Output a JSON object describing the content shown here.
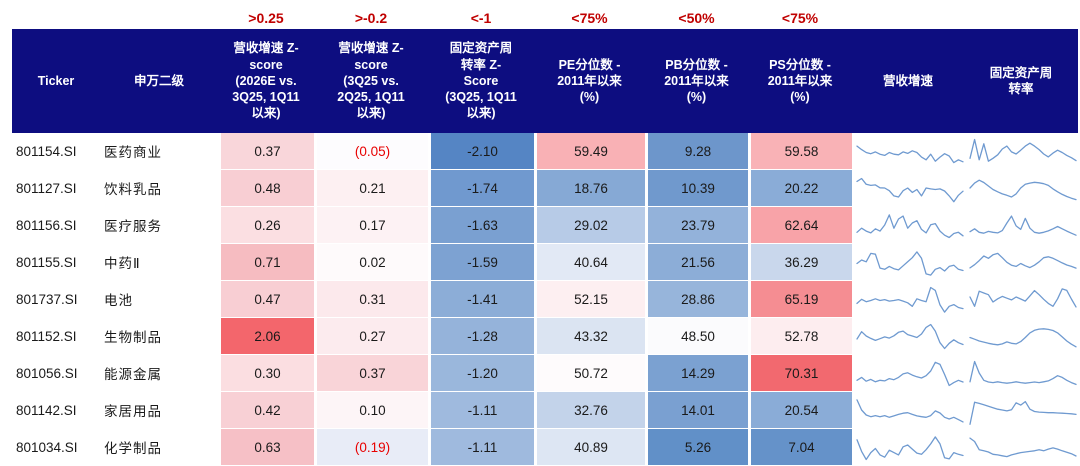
{
  "palette": {
    "header_bg": "#0d0d80",
    "header_text": "#ffffff",
    "annotation_red": "#c00000",
    "negative_red": "#e80000",
    "spark_line": "#6f9ad0",
    "cell_text": "#1a1a1a"
  },
  "annotations": {
    "z1": ">0.25",
    "z2": ">-0.2",
    "z3": "<-1",
    "pe": "<75%",
    "pb": "<50%",
    "ps": "<75%"
  },
  "header": {
    "ticker": "Ticker",
    "name": "申万二级",
    "z1": "营收增速 Z-\nscore\n(2026E vs.\n3Q25, 1Q11\n以来)",
    "z2": "营收增速 Z-\nscore\n(3Q25 vs.\n2Q25, 1Q11\n以来)",
    "z3": "固定资产周\n转率 Z-\nScore\n(3Q25, 1Q11\n以来)",
    "pe": "PE分位数 -\n2011年以来\n(%)",
    "pb": "PB分位数 -\n2011年以来\n(%)",
    "ps": "PS分位数 -\n2011年以来\n(%)",
    "spark_revenue": "营收增速",
    "spark_turnover": "固定资产周\n转率"
  },
  "chart_data": {
    "type": "table",
    "columns": [
      "Ticker",
      "申万二级",
      "营收增速 Z-score (2026E vs. 3Q25, 1Q11 以来)",
      "营收增速 Z-score (3Q25 vs. 2Q25, 1Q11 以来)",
      "固定资产周转率 Z-Score (3Q25, 1Q11 以来)",
      "PE分位数 - 2011年以来 (%)",
      "PB分位数 - 2011年以来 (%)",
      "PS分位数 - 2011年以来 (%)",
      "营收增速",
      "固定资产周转率"
    ],
    "threshold_annotations": [
      ">0.25",
      ">-0.2",
      "<-1",
      "<75%",
      "<50%",
      "<75%"
    ],
    "rows": [
      {
        "ticker": "801154.SI",
        "name": "医药商业",
        "cells": [
          {
            "v": "0.37",
            "bg": "#f9d6da"
          },
          {
            "v": "(0.05)",
            "bg": "#fdfcfe",
            "neg": true
          },
          {
            "v": "-2.10",
            "bg": "#5585c4"
          },
          {
            "v": "59.49",
            "bg": "#f9b1b5"
          },
          {
            "v": "9.28",
            "bg": "#6d96cb"
          },
          {
            "v": "59.58",
            "bg": "#f9b2b6"
          }
        ],
        "spark_revenue": [
          0.72,
          0.6,
          0.5,
          0.46,
          0.52,
          0.44,
          0.4,
          0.5,
          0.44,
          0.42,
          0.52,
          0.47,
          0.56,
          0.5,
          0.34,
          0.25,
          0.44,
          0.2,
          0.34,
          0.46,
          0.38,
          0.15,
          0.25,
          0.18
        ],
        "spark_turnover": [
          0.3,
          0.95,
          0.25,
          0.8,
          0.2,
          0.3,
          0.42,
          0.62,
          0.72,
          0.52,
          0.45,
          0.58,
          0.72,
          0.82,
          0.72,
          0.6,
          0.45,
          0.35,
          0.48,
          0.58,
          0.5,
          0.4,
          0.32,
          0.22
        ]
      },
      {
        "ticker": "801127.SI",
        "name": "饮料乳品",
        "cells": [
          {
            "v": "0.48",
            "bg": "#f8ced3"
          },
          {
            "v": "0.21",
            "bg": "#fdf0f2"
          },
          {
            "v": "-1.74",
            "bg": "#7099cf"
          },
          {
            "v": "18.76",
            "bg": "#86a9d5"
          },
          {
            "v": "10.39",
            "bg": "#7099cd"
          },
          {
            "v": "20.22",
            "bg": "#8aacd7"
          }
        ],
        "spark_revenue": [
          0.78,
          0.88,
          0.68,
          0.64,
          0.66,
          0.56,
          0.55,
          0.46,
          0.28,
          0.24,
          0.46,
          0.55,
          0.4,
          0.5,
          0.28,
          0.55,
          0.52,
          0.5,
          0.52,
          0.45,
          0.28,
          0.08,
          0.3,
          0.44
        ],
        "spark_turnover": [
          0.55,
          0.72,
          0.82,
          0.74,
          0.62,
          0.5,
          0.42,
          0.35,
          0.3,
          0.24,
          0.35,
          0.55,
          0.68,
          0.72,
          0.75,
          0.73,
          0.7,
          0.64,
          0.52,
          0.42,
          0.33,
          0.26,
          0.2,
          0.15
        ]
      },
      {
        "ticker": "801156.SI",
        "name": "医疗服务",
        "cells": [
          {
            "v": "0.26",
            "bg": "#fbdfe2"
          },
          {
            "v": "0.17",
            "bg": "#fdf2f4"
          },
          {
            "v": "-1.63",
            "bg": "#7aa0d1"
          },
          {
            "v": "29.02",
            "bg": "#b7cbe7"
          },
          {
            "v": "23.79",
            "bg": "#93b2da"
          },
          {
            "v": "62.64",
            "bg": "#f8a3a8"
          }
        ],
        "spark_revenue": [
          0.3,
          0.44,
          0.34,
          0.28,
          0.42,
          0.34,
          0.55,
          0.9,
          0.44,
          0.76,
          0.86,
          0.44,
          0.62,
          0.7,
          0.4,
          0.28,
          0.56,
          0.6,
          0.34,
          0.2,
          0.12,
          0.26,
          0.3,
          0.18
        ],
        "spark_turnover": [
          0.32,
          0.42,
          0.3,
          0.27,
          0.33,
          0.3,
          0.28,
          0.36,
          0.62,
          0.86,
          0.52,
          0.4,
          0.78,
          0.44,
          0.3,
          0.27,
          0.3,
          0.35,
          0.42,
          0.5,
          0.42,
          0.34,
          0.27,
          0.2
        ]
      },
      {
        "ticker": "801155.SI",
        "name": "中药Ⅱ",
        "cells": [
          {
            "v": "0.71",
            "bg": "#f6bcc1"
          },
          {
            "v": "0.02",
            "bg": "#fefafb"
          },
          {
            "v": "-1.59",
            "bg": "#7da2d2"
          },
          {
            "v": "40.64",
            "bg": "#e2e9f5"
          },
          {
            "v": "21.56",
            "bg": "#8cadd7"
          },
          {
            "v": "36.29",
            "bg": "#c9d7ec"
          }
        ],
        "spark_revenue": [
          0.5,
          0.62,
          0.56,
          0.85,
          0.82,
          0.34,
          0.3,
          0.4,
          0.32,
          0.28,
          0.42,
          0.56,
          0.7,
          0.9,
          0.68,
          0.14,
          0.1,
          0.3,
          0.36,
          0.24,
          0.4,
          0.44,
          0.3,
          0.26
        ],
        "spark_turnover": [
          0.35,
          0.46,
          0.6,
          0.76,
          0.68,
          0.8,
          0.85,
          0.7,
          0.54,
          0.44,
          0.4,
          0.5,
          0.42,
          0.36,
          0.44,
          0.56,
          0.7,
          0.73,
          0.68,
          0.6,
          0.52,
          0.45,
          0.4,
          0.34
        ]
      },
      {
        "ticker": "801737.SI",
        "name": "电池",
        "cells": [
          {
            "v": "0.47",
            "bg": "#f8ced3"
          },
          {
            "v": "0.31",
            "bg": "#fce9ec"
          },
          {
            "v": "-1.41",
            "bg": "#8cadd7"
          },
          {
            "v": "52.15",
            "bg": "#fdeff1"
          },
          {
            "v": "28.86",
            "bg": "#97b5db"
          },
          {
            "v": "65.19",
            "bg": "#f58d92"
          }
        ],
        "spark_revenue": [
          0.4,
          0.54,
          0.46,
          0.5,
          0.56,
          0.5,
          0.53,
          0.48,
          0.5,
          0.53,
          0.48,
          0.42,
          0.3,
          0.56,
          0.5,
          0.46,
          0.95,
          0.85,
          0.35,
          0.1,
          0.3,
          0.36,
          0.26,
          0.22
        ],
        "spark_turnover": [
          0.62,
          0.3,
          0.82,
          0.76,
          0.7,
          0.45,
          0.56,
          0.64,
          0.58,
          0.52,
          0.62,
          0.55,
          0.48,
          0.66,
          0.84,
          0.7,
          0.54,
          0.4,
          0.3,
          0.56,
          0.9,
          0.85,
          0.55,
          0.28
        ]
      },
      {
        "ticker": "801152.SI",
        "name": "生物制品",
        "cells": [
          {
            "v": "2.06",
            "bg": "#f3666c"
          },
          {
            "v": "0.27",
            "bg": "#fcebee"
          },
          {
            "v": "-1.28",
            "bg": "#95b3da"
          },
          {
            "v": "43.32",
            "bg": "#dbe4f2"
          },
          {
            "v": "48.50",
            "bg": "#fbfbfd"
          },
          {
            "v": "52.78",
            "bg": "#fdedef"
          }
        ],
        "spark_revenue": [
          0.45,
          0.7,
          0.55,
          0.47,
          0.4,
          0.46,
          0.52,
          0.48,
          0.56,
          0.68,
          0.72,
          0.6,
          0.55,
          0.5,
          0.62,
          0.85,
          0.95,
          0.72,
          0.32,
          0.12,
          0.3,
          0.42,
          0.32,
          0.26
        ],
        "spark_turnover": [
          0.5,
          0.44,
          0.38,
          0.34,
          0.3,
          0.27,
          0.25,
          0.28,
          0.35,
          0.3,
          0.28,
          0.36,
          0.5,
          0.66,
          0.75,
          0.79,
          0.8,
          0.78,
          0.74,
          0.66,
          0.52,
          0.38,
          0.27,
          0.18
        ]
      },
      {
        "ticker": "801056.SI",
        "name": "能源金属",
        "cells": [
          {
            "v": "0.30",
            "bg": "#fbdee1"
          },
          {
            "v": "0.37",
            "bg": "#f9d4d8"
          },
          {
            "v": "-1.20",
            "bg": "#9ab7dc"
          },
          {
            "v": "50.72",
            "bg": "#fefbfc"
          },
          {
            "v": "14.29",
            "bg": "#7ba1d1"
          },
          {
            "v": "70.31",
            "bg": "#f2696f"
          }
        ],
        "spark_revenue": [
          0.3,
          0.4,
          0.27,
          0.33,
          0.25,
          0.3,
          0.28,
          0.36,
          0.32,
          0.4,
          0.52,
          0.56,
          0.48,
          0.42,
          0.38,
          0.46,
          0.62,
          0.92,
          0.85,
          0.5,
          0.12,
          0.22,
          0.3,
          0.24
        ],
        "spark_turnover": [
          0.25,
          0.95,
          0.55,
          0.3,
          0.24,
          0.22,
          0.25,
          0.22,
          0.2,
          0.22,
          0.25,
          0.22,
          0.2,
          0.22,
          0.24,
          0.22,
          0.25,
          0.28,
          0.36,
          0.46,
          0.4,
          0.3,
          0.22,
          0.16
        ]
      },
      {
        "ticker": "801142.SI",
        "name": "家居用品",
        "cells": [
          {
            "v": "0.42",
            "bg": "#f8d0d5"
          },
          {
            "v": "0.10",
            "bg": "#fdf5f7"
          },
          {
            "v": "-1.11",
            "bg": "#9fbade"
          },
          {
            "v": "32.76",
            "bg": "#c3d3ea"
          },
          {
            "v": "14.01",
            "bg": "#7aa0d1"
          },
          {
            "v": "20.54",
            "bg": "#8aacd7"
          }
        ],
        "spark_revenue": [
          0.9,
          0.55,
          0.38,
          0.32,
          0.36,
          0.32,
          0.36,
          0.3,
          0.35,
          0.4,
          0.44,
          0.46,
          0.4,
          0.35,
          0.32,
          0.3,
          0.36,
          0.52,
          0.45,
          0.3,
          0.24,
          0.3,
          0.22,
          0.14
        ],
        "spark_turnover": [
          0.06,
          0.82,
          0.78,
          0.73,
          0.68,
          0.63,
          0.58,
          0.55,
          0.52,
          0.56,
          0.8,
          0.72,
          0.84,
          0.58,
          0.5,
          0.48,
          0.47,
          0.46,
          0.46,
          0.45,
          0.44,
          0.43,
          0.42,
          0.4
        ]
      },
      {
        "ticker": "801034.SI",
        "name": "化学制品",
        "cells": [
          {
            "v": "0.63",
            "bg": "#f6c0c6"
          },
          {
            "v": "(0.19)",
            "bg": "#e8ecf7",
            "neg": true
          },
          {
            "v": "-1.11",
            "bg": "#9fbade"
          },
          {
            "v": "40.89",
            "bg": "#dde6f3"
          },
          {
            "v": "5.26",
            "bg": "#6190c8"
          },
          {
            "v": "7.04",
            "bg": "#6592c9"
          }
        ],
        "spark_revenue": [
          0.8,
          0.4,
          0.12,
          0.36,
          0.5,
          0.28,
          0.2,
          0.44,
          0.36,
          0.28,
          0.56,
          0.62,
          0.48,
          0.34,
          0.3,
          0.46,
          0.66,
          0.9,
          0.66,
          0.18,
          0.14,
          0.36,
          0.3,
          0.26
        ],
        "spark_turnover": [
          0.86,
          0.74,
          0.46,
          0.42,
          0.38,
          0.3,
          0.28,
          0.25,
          0.22,
          0.28,
          0.32,
          0.36,
          0.38,
          0.4,
          0.42,
          0.46,
          0.42,
          0.48,
          0.52,
          0.48,
          0.42,
          0.37,
          0.32,
          0.24
        ]
      }
    ]
  }
}
